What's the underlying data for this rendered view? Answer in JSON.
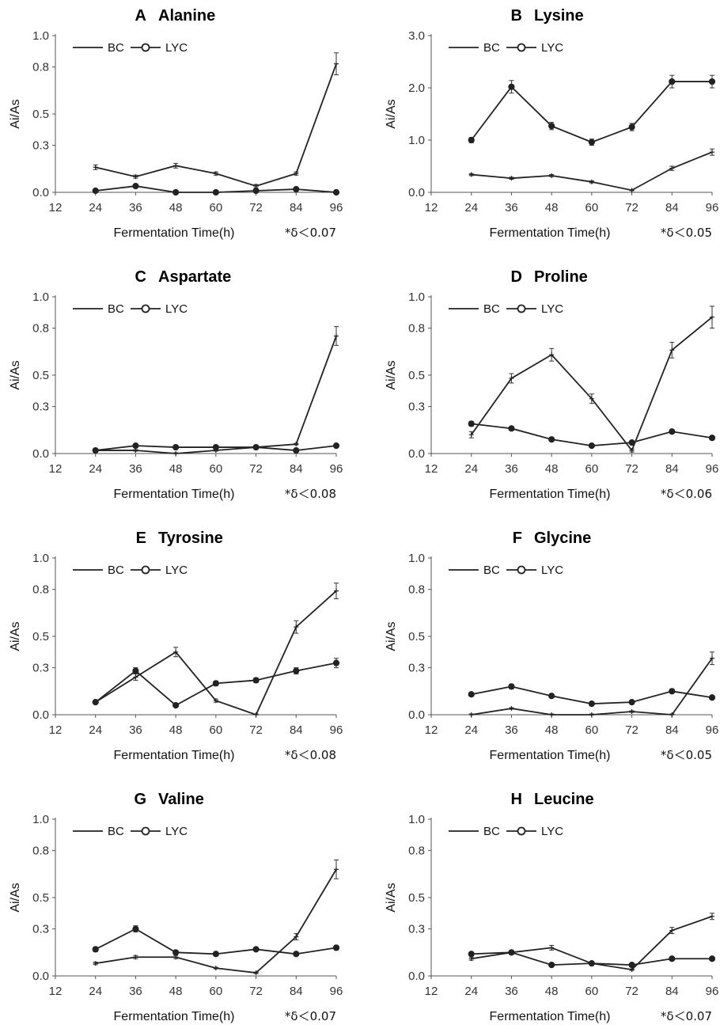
{
  "chart_data": [
    {
      "type": "line",
      "panel_letter": "A",
      "title": "Alanine",
      "xlabel": "Fermentation Time(h)",
      "ylabel": "Ai/As",
      "x_ticks": [
        "12",
        "24",
        "36",
        "48",
        "60",
        "72",
        "84",
        "96"
      ],
      "y_ticks": [
        "0.0",
        "0.3",
        "0.5",
        "0.8",
        "1.0"
      ],
      "ylim": [
        0,
        1.0
      ],
      "note": "*δ＜0.07",
      "legend_position": "top-left",
      "x": [
        24,
        36,
        48,
        60,
        72,
        84,
        96
      ],
      "series": [
        {
          "name": "BC",
          "marker": "cross",
          "values": [
            0.16,
            0.1,
            0.17,
            0.12,
            0.04,
            0.12,
            0.82
          ],
          "errors": [
            0.015,
            0.01,
            0.015,
            0.01,
            0.01,
            0.01,
            0.07
          ]
        },
        {
          "name": "LYC",
          "marker": "circle",
          "values": [
            0.01,
            0.04,
            0.0,
            0.0,
            0.01,
            0.02,
            0.0
          ],
          "errors": [
            0.005,
            0.005,
            0.005,
            0.005,
            0.005,
            0.005,
            0.005
          ]
        }
      ]
    },
    {
      "type": "line",
      "panel_letter": "B",
      "title": "Lysine",
      "xlabel": "Fermentation Time(h)",
      "ylabel": "Ai/As",
      "x_ticks": [
        "12",
        "24",
        "36",
        "48",
        "60",
        "72",
        "84",
        "96"
      ],
      "y_ticks": [
        "0.0",
        "1.0",
        "2.0",
        "3.0"
      ],
      "ylim": [
        0,
        3.0
      ],
      "note": "*δ＜0.05",
      "legend_position": "top-left",
      "x": [
        24,
        36,
        48,
        60,
        72,
        84,
        96
      ],
      "series": [
        {
          "name": "BC",
          "marker": "cross",
          "values": [
            0.34,
            0.27,
            0.32,
            0.2,
            0.04,
            0.46,
            0.77
          ],
          "errors": [
            0.02,
            0.02,
            0.02,
            0.02,
            0.01,
            0.04,
            0.06
          ]
        },
        {
          "name": "LYC",
          "marker": "circle",
          "values": [
            1.0,
            2.02,
            1.27,
            0.96,
            1.25,
            2.12,
            2.12
          ],
          "errors": [
            0.05,
            0.12,
            0.07,
            0.06,
            0.07,
            0.12,
            0.12
          ]
        }
      ]
    },
    {
      "type": "line",
      "panel_letter": "C",
      "title": "Aspartate",
      "xlabel": "Fermentation Time(h)",
      "ylabel": "Ai/As",
      "x_ticks": [
        "12",
        "24",
        "36",
        "48",
        "60",
        "72",
        "84",
        "96"
      ],
      "y_ticks": [
        "0.0",
        "0.3",
        "0.5",
        "0.8",
        "1.0"
      ],
      "ylim": [
        0,
        1.0
      ],
      "note": "*δ＜0.08",
      "legend_position": "top-left",
      "x": [
        24,
        36,
        48,
        60,
        72,
        84,
        96
      ],
      "series": [
        {
          "name": "BC",
          "marker": "cross",
          "values": [
            0.02,
            0.02,
            0.0,
            0.02,
            0.04,
            0.06,
            0.75
          ],
          "errors": [
            0.005,
            0.005,
            0.005,
            0.005,
            0.005,
            0.005,
            0.06
          ]
        },
        {
          "name": "LYC",
          "marker": "circle",
          "values": [
            0.02,
            0.05,
            0.04,
            0.04,
            0.04,
            0.02,
            0.05
          ],
          "errors": [
            0.005,
            0.005,
            0.005,
            0.005,
            0.005,
            0.005,
            0.005
          ]
        }
      ]
    },
    {
      "type": "line",
      "panel_letter": "D",
      "title": "Proline",
      "xlabel": "Fermentation Time(h)",
      "ylabel": "Ai/As",
      "x_ticks": [
        "12",
        "24",
        "36",
        "48",
        "60",
        "72",
        "84",
        "96"
      ],
      "y_ticks": [
        "0.0",
        "0.3",
        "0.5",
        "0.8",
        "1.0"
      ],
      "ylim": [
        0,
        1.0
      ],
      "note": "*δ＜0.06",
      "legend_position": "top-left",
      "x": [
        24,
        36,
        48,
        60,
        72,
        84,
        96
      ],
      "series": [
        {
          "name": "BC",
          "marker": "cross",
          "values": [
            0.12,
            0.48,
            0.63,
            0.35,
            0.02,
            0.66,
            0.87
          ],
          "errors": [
            0.02,
            0.03,
            0.04,
            0.03,
            0.01,
            0.05,
            0.07
          ]
        },
        {
          "name": "LYC",
          "marker": "circle",
          "values": [
            0.19,
            0.16,
            0.09,
            0.05,
            0.07,
            0.14,
            0.1
          ],
          "errors": [
            0.015,
            0.01,
            0.008,
            0.005,
            0.005,
            0.01,
            0.01
          ]
        }
      ]
    },
    {
      "type": "line",
      "panel_letter": "E",
      "title": "Tyrosine",
      "xlabel": "Fermentation Time(h)",
      "ylabel": "Ai/As",
      "x_ticks": [
        "12",
        "24",
        "36",
        "48",
        "60",
        "72",
        "84",
        "96"
      ],
      "y_ticks": [
        "0.0",
        "0.3",
        "0.5",
        "0.8",
        "1.0"
      ],
      "ylim": [
        0,
        1.0
      ],
      "note": "*δ＜0.08",
      "legend_position": "top-left",
      "x": [
        24,
        36,
        48,
        60,
        72,
        84,
        96
      ],
      "series": [
        {
          "name": "BC",
          "marker": "cross",
          "values": [
            0.08,
            0.24,
            0.4,
            0.09,
            0.0,
            0.56,
            0.79
          ],
          "errors": [
            0.01,
            0.02,
            0.03,
            0.01,
            0.005,
            0.04,
            0.05
          ]
        },
        {
          "name": "LYC",
          "marker": "circle",
          "values": [
            0.08,
            0.28,
            0.06,
            0.2,
            0.22,
            0.28,
            0.33
          ],
          "errors": [
            0.01,
            0.02,
            0.005,
            0.015,
            0.015,
            0.02,
            0.03
          ]
        }
      ]
    },
    {
      "type": "line",
      "panel_letter": "F",
      "title": "Glycine",
      "xlabel": "Fermentation Time(h)",
      "ylabel": "Ai/As",
      "x_ticks": [
        "12",
        "24",
        "36",
        "48",
        "60",
        "72",
        "84",
        "96"
      ],
      "y_ticks": [
        "0.0",
        "0.3",
        "0.5",
        "0.8",
        "1.0"
      ],
      "ylim": [
        0,
        1.0
      ],
      "note": "*δ＜0.05",
      "legend_position": "top-left",
      "x": [
        24,
        36,
        48,
        60,
        72,
        84,
        96
      ],
      "series": [
        {
          "name": "BC",
          "marker": "cross",
          "values": [
            0.0,
            0.04,
            0.0,
            0.0,
            0.02,
            0.0,
            0.36
          ],
          "errors": [
            0.005,
            0.005,
            0.005,
            0.005,
            0.005,
            0.005,
            0.04
          ]
        },
        {
          "name": "LYC",
          "marker": "circle",
          "values": [
            0.13,
            0.18,
            0.12,
            0.07,
            0.08,
            0.15,
            0.11
          ],
          "errors": [
            0.01,
            0.015,
            0.008,
            0.005,
            0.005,
            0.01,
            0.01
          ]
        }
      ]
    },
    {
      "type": "line",
      "panel_letter": "G",
      "title": "Valine",
      "xlabel": "Fermentation Time(h)",
      "ylabel": "Ai/As",
      "x_ticks": [
        "12",
        "24",
        "36",
        "48",
        "60",
        "72",
        "84",
        "96"
      ],
      "y_ticks": [
        "0.0",
        "0.3",
        "0.5",
        "0.8",
        "1.0"
      ],
      "ylim": [
        0,
        1.0
      ],
      "note": "*δ＜0.07",
      "legend_position": "top-left",
      "x": [
        24,
        36,
        48,
        60,
        72,
        84,
        96
      ],
      "series": [
        {
          "name": "BC",
          "marker": "cross",
          "values": [
            0.08,
            0.12,
            0.12,
            0.05,
            0.02,
            0.25,
            0.68
          ],
          "errors": [
            0.008,
            0.01,
            0.01,
            0.005,
            0.005,
            0.02,
            0.06
          ]
        },
        {
          "name": "LYC",
          "marker": "circle",
          "values": [
            0.17,
            0.3,
            0.15,
            0.14,
            0.17,
            0.14,
            0.18
          ],
          "errors": [
            0.015,
            0.02,
            0.01,
            0.01,
            0.01,
            0.01,
            0.015
          ]
        }
      ]
    },
    {
      "type": "line",
      "panel_letter": "H",
      "title": "Leucine",
      "xlabel": "Fermentation Time(h)",
      "ylabel": "Ai/As",
      "x_ticks": [
        "12",
        "24",
        "36",
        "48",
        "60",
        "72",
        "84",
        "96"
      ],
      "y_ticks": [
        "0.0",
        "0.3",
        "0.5",
        "0.8",
        "1.0"
      ],
      "ylim": [
        0,
        1.0
      ],
      "note": "*δ＜0.07",
      "legend_position": "top-left",
      "x": [
        24,
        36,
        48,
        60,
        72,
        84,
        96
      ],
      "series": [
        {
          "name": "BC",
          "marker": "cross",
          "values": [
            0.11,
            0.15,
            0.18,
            0.08,
            0.04,
            0.29,
            0.38
          ],
          "errors": [
            0.01,
            0.01,
            0.015,
            0.008,
            0.005,
            0.02,
            0.02
          ]
        },
        {
          "name": "LYC",
          "marker": "circle",
          "values": [
            0.14,
            0.15,
            0.07,
            0.08,
            0.07,
            0.11,
            0.11
          ],
          "errors": [
            0.01,
            0.01,
            0.008,
            0.008,
            0.008,
            0.01,
            0.01
          ]
        }
      ]
    }
  ]
}
